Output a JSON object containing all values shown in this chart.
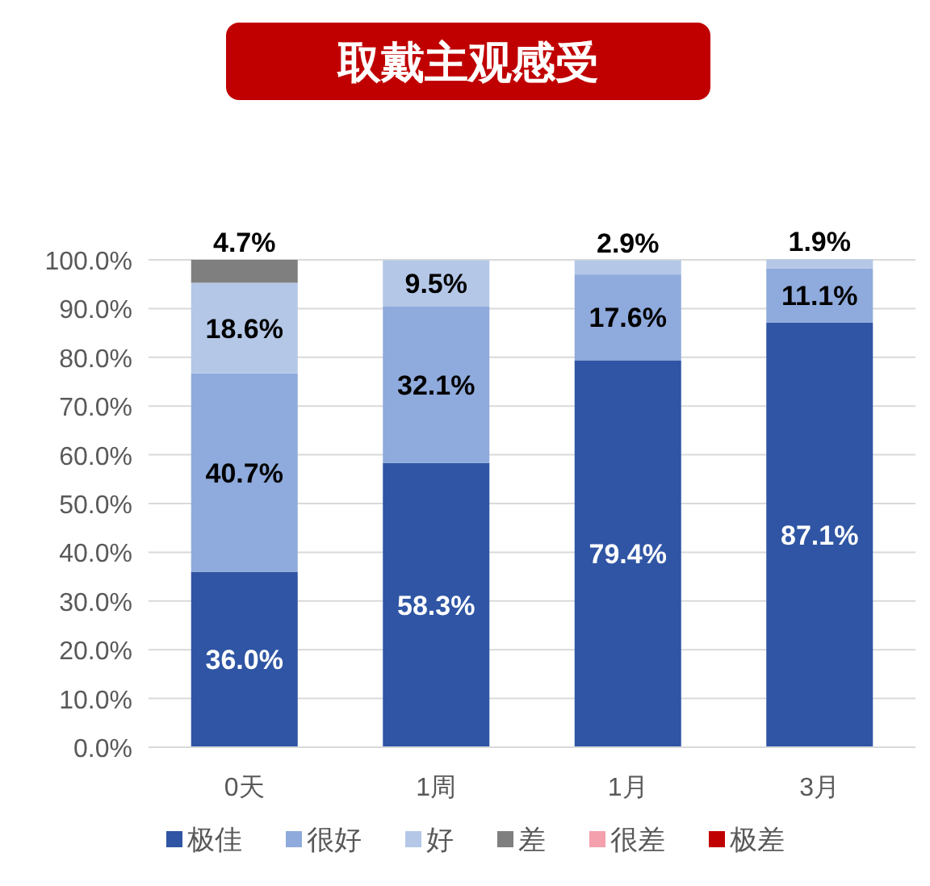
{
  "chart_data": {
    "type": "bar",
    "stacked": true,
    "title": "取戴主观感受",
    "categories": [
      "0天",
      "1周",
      "1月",
      "3月"
    ],
    "series": [
      {
        "name": "极佳",
        "color": "#2f55a4",
        "values": [
          36.0,
          58.3,
          79.4,
          87.1
        ],
        "value_labels": [
          "36.0%",
          "58.3%",
          "79.4%",
          "87.1%"
        ]
      },
      {
        "name": "很好",
        "color": "#8faadc",
        "values": [
          40.7,
          32.1,
          17.6,
          11.1
        ],
        "value_labels": [
          "40.7%",
          "32.1%",
          "17.6%",
          "11.1%"
        ]
      },
      {
        "name": "好",
        "color": "#b4c7e7",
        "values": [
          18.6,
          9.5,
          2.9,
          1.9
        ],
        "value_labels": [
          "18.6%",
          "9.5%",
          "2.9%",
          "1.9%"
        ]
      },
      {
        "name": "差",
        "color": "#7f7f7f",
        "values": [
          4.7,
          0,
          0,
          0
        ],
        "value_labels": [
          "4.7%",
          null,
          null,
          null
        ]
      },
      {
        "name": "很差",
        "color": "#f4a0ad",
        "values": [
          0,
          0,
          0,
          0
        ],
        "value_labels": [
          null,
          null,
          null,
          null
        ]
      },
      {
        "name": "极差",
        "color": "#c00000",
        "values": [
          0,
          0,
          0,
          0
        ],
        "value_labels": [
          null,
          null,
          null,
          null
        ]
      }
    ],
    "ylim": [
      0,
      100
    ],
    "yticks": [
      {
        "value": 0,
        "label": "0.0%"
      },
      {
        "value": 10,
        "label": "10.0%"
      },
      {
        "value": 20,
        "label": "20.0%"
      },
      {
        "value": 30,
        "label": "30.0%"
      },
      {
        "value": 40,
        "label": "40.0%"
      },
      {
        "value": 50,
        "label": "50.0%"
      },
      {
        "value": 60,
        "label": "60.0%"
      },
      {
        "value": 70,
        "label": "70.0%"
      },
      {
        "value": 80,
        "label": "80.0%"
      },
      {
        "value": 90,
        "label": "90.0%"
      },
      {
        "value": 100,
        "label": "100.0%"
      }
    ],
    "grid": "y",
    "legend": "bottom"
  }
}
